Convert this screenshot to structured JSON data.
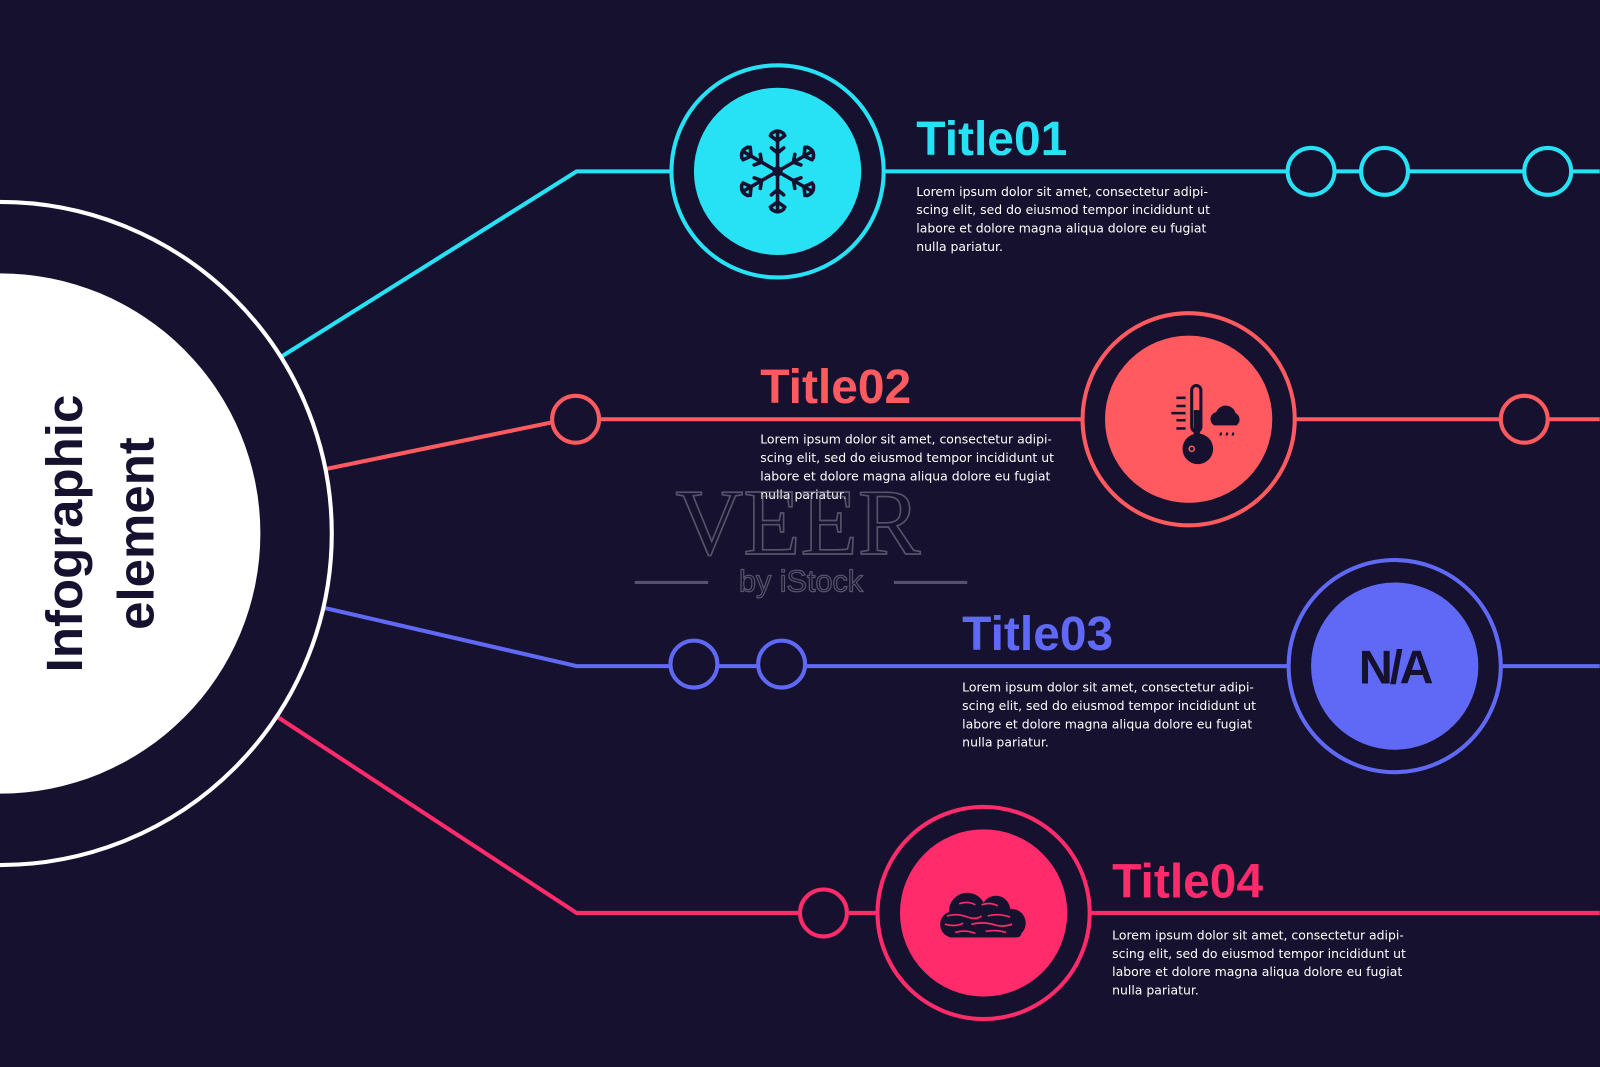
{
  "background_color": "#16112e",
  "center": {
    "line1": "Infographic",
    "line2": "element"
  },
  "items": [
    {
      "title": "Title01",
      "color": "#27e1f5",
      "icon": "snowflake-icon",
      "lines": [
        "Lorem ipsum dolor sit amet, consectetur adipi-",
        "scing elit, sed do eiusmod tempor incididunt ut",
        "labore et dolore magna aliqua dolore eu fugiat",
        "nulla pariatur."
      ]
    },
    {
      "title": "Title02",
      "color": "#ff5a5f",
      "icon": "thermometer-cloud-rain-icon",
      "lines": [
        "Lorem ipsum dolor sit amet, consectetur adipi-",
        "scing elit, sed do eiusmod tempor incididunt ut",
        "labore et dolore magna aliqua dolore eu fugiat",
        "nulla pariatur."
      ]
    },
    {
      "title": "Title03",
      "color": "#5f69f5",
      "icon": "not-applicable-icon",
      "icon_text": "N/A",
      "lines": [
        "Lorem ipsum dolor sit amet, consectetur adipi-",
        "scing elit, sed do eiusmod tempor incididunt ut",
        "labore et dolore magna aliqua dolore eu fugiat",
        "nulla pariatur."
      ]
    },
    {
      "title": "Title04",
      "color": "#ff2b6b",
      "icon": "fog-cloud-icon",
      "lines": [
        "Lorem ipsum dolor sit amet, consectetur adipi-",
        "scing elit, sed do eiusmod tempor incididunt ut",
        "labore et dolore magna aliqua dolore eu fugiat",
        "nulla pariatur."
      ]
    }
  ],
  "watermark": {
    "main": "VEER",
    "sub": "by iStock"
  }
}
